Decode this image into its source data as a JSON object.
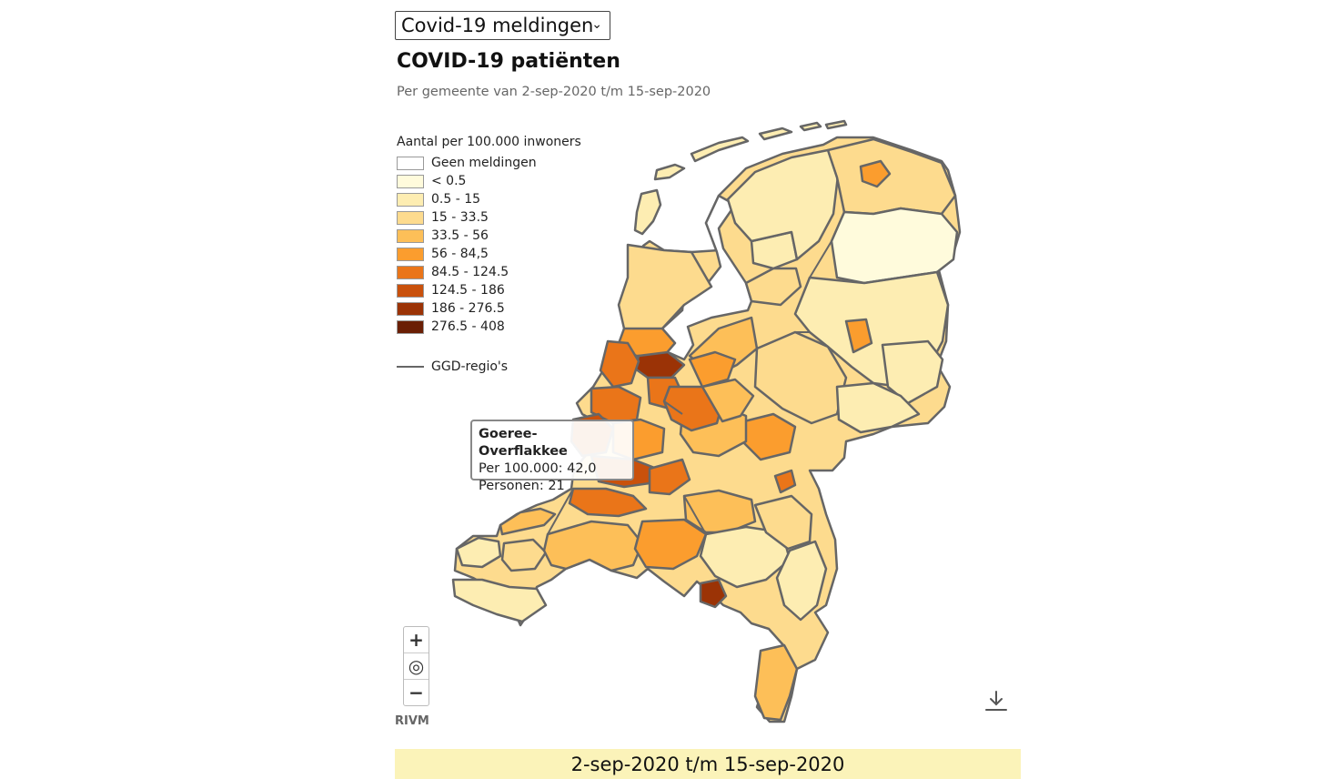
{
  "selector": {
    "value": "Covid-19 meldingen",
    "chevron": "chevron-down-icon"
  },
  "title": "COVID-19 patiënten",
  "subtitle": "Per gemeente van 2-sep-2020 t/m 15-sep-2020",
  "legend": {
    "title": "Aantal per 100.000 inwoners",
    "classes": [
      {
        "label": "Geen meldingen",
        "color": "#ffffff"
      },
      {
        "label": "< 0.5",
        "color": "#fffbdc"
      },
      {
        "label": "0.5 - 15",
        "color": "#fdedb2"
      },
      {
        "label": "15 - 33.5",
        "color": "#fddb8e"
      },
      {
        "label": "33.5 - 56",
        "color": "#fdbf58"
      },
      {
        "label": "56 - 84,5",
        "color": "#fb9d2e"
      },
      {
        "label": "84.5 - 124.5",
        "color": "#ea7519"
      },
      {
        "label": "124.5 - 186",
        "color": "#c9510c"
      },
      {
        "label": "186 - 276.5",
        "color": "#9b3306"
      },
      {
        "label": "276.5 - 408",
        "color": "#6a1f05"
      }
    ],
    "ggd_label": "GGD-regio's"
  },
  "tooltip": {
    "name": "Goeree-Overflakkee",
    "per100k": "Per 100.000: 42,0",
    "persons": "Personen: 21"
  },
  "zoom": {
    "in": "+",
    "reset": "◎",
    "out": "−"
  },
  "attribution": "RIVM",
  "download_icon": "download-icon",
  "date_range": "2-sep-2020 t/m 15-sep-2020"
}
